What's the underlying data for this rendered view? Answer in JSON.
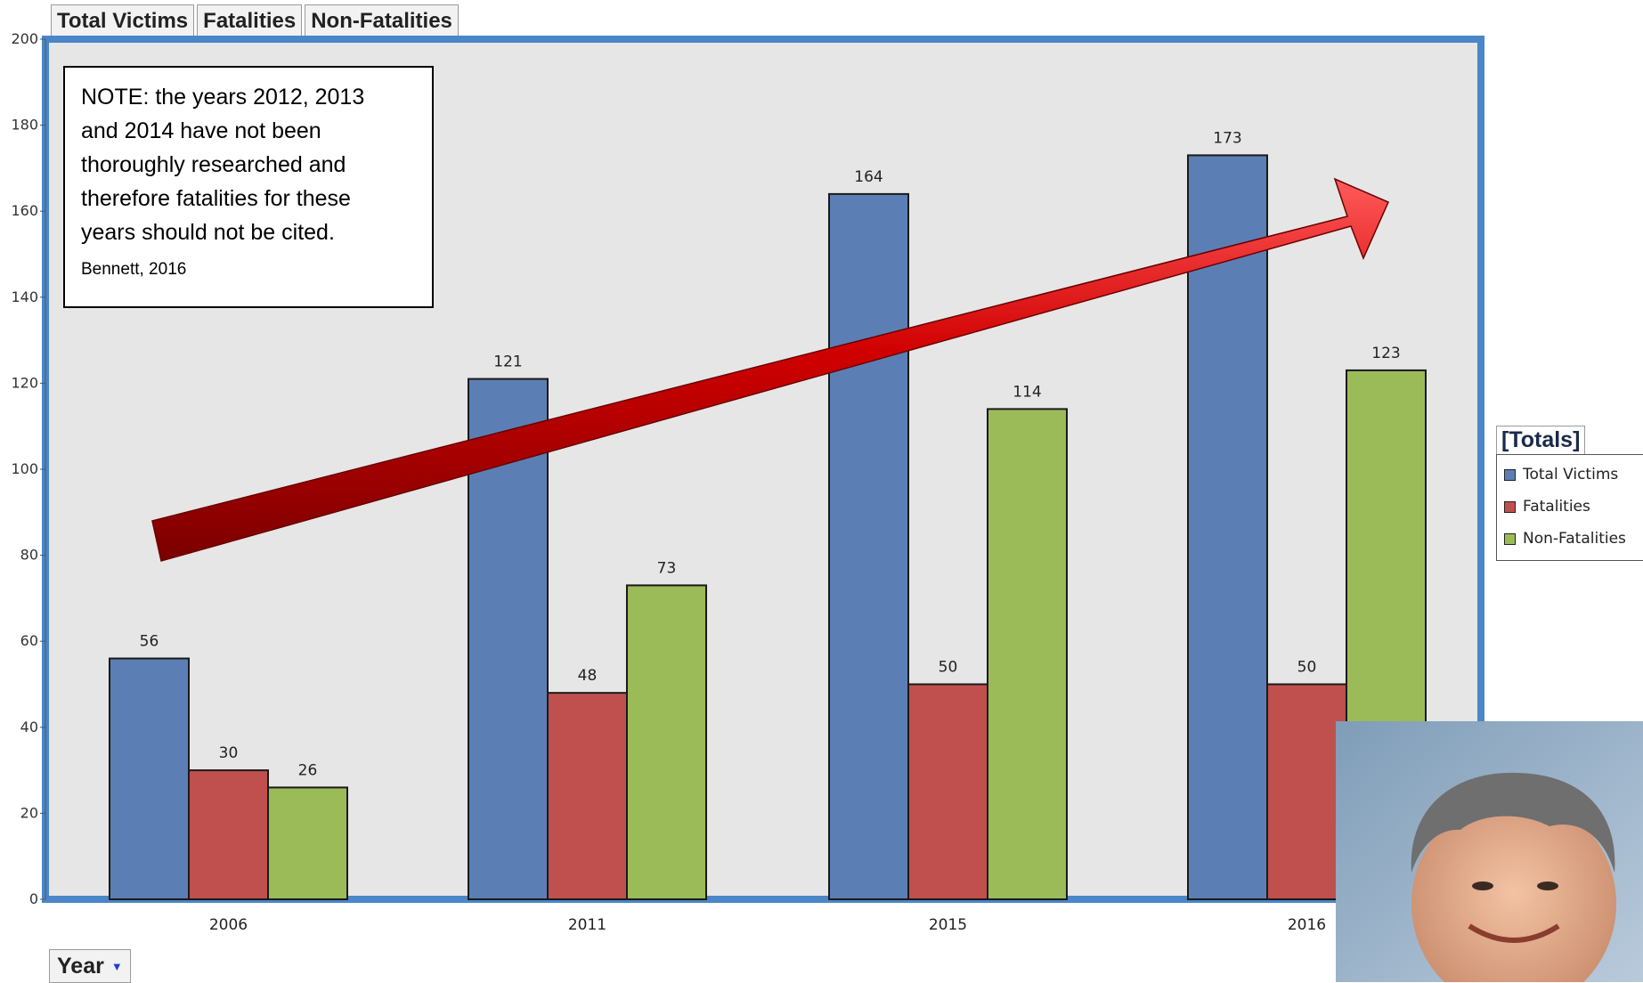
{
  "tabs": [
    "Total Victims",
    "Fatalities",
    "Non-Fatalities"
  ],
  "note": {
    "lines": [
      "NOTE: the years 2012, 2013",
      "and 2014 have not been",
      "thoroughly researched and",
      "therefore fatalities for these",
      "years should not be cited."
    ],
    "citation": "Bennett, 2016"
  },
  "legend": {
    "title": "[Totals]",
    "items": [
      {
        "label": "Total Victims",
        "color": "#5b7fb5"
      },
      {
        "label": "Fatalities",
        "color": "#c0504d"
      },
      {
        "label": "Non-Fatalities",
        "color": "#9bbb59"
      }
    ]
  },
  "x_control": {
    "label": "Year",
    "icon": "dropdown-arrow-icon"
  },
  "photo": {
    "subject": "portrait-photo"
  },
  "chart_data": {
    "type": "bar",
    "categories": [
      "2006",
      "2011",
      "2015",
      "2016"
    ],
    "series": [
      {
        "name": "Total Victims",
        "values": [
          56,
          121,
          164,
          173
        ],
        "color": "#5b7fb5"
      },
      {
        "name": "Fatalities",
        "values": [
          30,
          48,
          50,
          50
        ],
        "color": "#c0504d"
      },
      {
        "name": "Non-Fatalities",
        "values": [
          26,
          73,
          114,
          123
        ],
        "color": "#9bbb59"
      }
    ],
    "ylim": [
      0,
      200
    ],
    "yticks": [
      0,
      20,
      40,
      60,
      80,
      100,
      120,
      140,
      160,
      180,
      200
    ],
    "xlabel": "Year",
    "ylabel": "",
    "legend": "right",
    "grid": false,
    "annotations": [
      "upward trend arrow"
    ]
  }
}
